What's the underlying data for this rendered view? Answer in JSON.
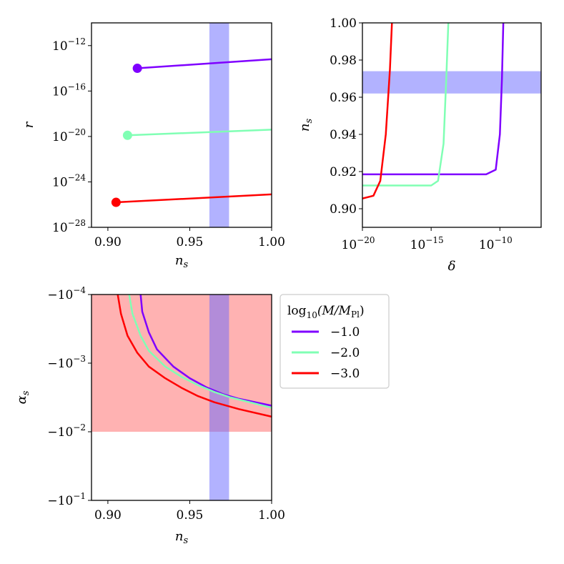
{
  "chart_data": [
    {
      "type": "line",
      "panel": "top-left",
      "xlabel": "n_s",
      "ylabel": "r",
      "xscale": "linear",
      "yscale": "log",
      "xlim": [
        0.89,
        1.0
      ],
      "ylim_exp": [
        -28,
        -10
      ],
      "xticks": [
        0.9,
        0.95,
        1.0
      ],
      "xtick_labels": [
        "0.90",
        "0.95",
        "1.00"
      ],
      "yticks_exp": [
        -28,
        -24,
        -20,
        -16,
        -12
      ],
      "band_x": [
        0.962,
        0.974
      ],
      "series": [
        {
          "name": "−1.0",
          "color": "#7f00ff",
          "x": [
            0.918,
            1.0
          ],
          "log10y": [
            -14.0,
            -13.2
          ]
        },
        {
          "name": "−2.0",
          "color": "#80ffb4",
          "x": [
            0.912,
            1.0
          ],
          "log10y": [
            -19.9,
            -19.4
          ]
        },
        {
          "name": "−3.0",
          "color": "#ff0000",
          "x": [
            0.905,
            1.0
          ],
          "log10y": [
            -25.8,
            -25.1
          ]
        }
      ]
    },
    {
      "type": "line",
      "panel": "top-right",
      "xlabel": "δ",
      "ylabel": "n_s",
      "xscale": "log",
      "yscale": "linear",
      "xlim_exp": [
        -20,
        -7
      ],
      "ylim": [
        0.89,
        1.0
      ],
      "xticks_exp": [
        -20,
        -15,
        -10
      ],
      "yticks": [
        0.9,
        0.92,
        0.94,
        0.96,
        0.98,
        1.0
      ],
      "ytick_labels": [
        "0.90",
        "0.92",
        "0.94",
        "0.96",
        "0.98",
        "1.00"
      ],
      "band_y": [
        0.962,
        0.974
      ],
      "series": [
        {
          "name": "−1.0",
          "color": "#7f00ff",
          "log10x": [
            -20,
            -11.0,
            -10.3,
            -10.0,
            -9.85,
            -9.75
          ],
          "y": [
            0.9185,
            0.9185,
            0.921,
            0.94,
            0.97,
            1.0
          ]
        },
        {
          "name": "−2.0",
          "color": "#80ffb4",
          "log10x": [
            -20,
            -15.0,
            -14.5,
            -14.1,
            -13.9,
            -13.75
          ],
          "y": [
            0.9125,
            0.9125,
            0.915,
            0.935,
            0.97,
            1.0
          ]
        },
        {
          "name": "−3.0",
          "color": "#ff0000",
          "log10x": [
            -20,
            -19.2,
            -18.7,
            -18.3,
            -18.0,
            -17.85
          ],
          "y": [
            0.9055,
            0.907,
            0.915,
            0.94,
            0.975,
            1.0
          ]
        }
      ]
    },
    {
      "type": "line",
      "panel": "bottom-left",
      "xlabel": "n_s",
      "ylabel": "α_s",
      "xscale": "linear",
      "yscale": "symlog-negative",
      "xlim": [
        0.89,
        1.0
      ],
      "ylim_exp": [
        -4,
        -1
      ],
      "xticks": [
        0.9,
        0.95,
        1.0
      ],
      "xtick_labels": [
        "0.90",
        "0.95",
        "1.00"
      ],
      "yticks_exp": [
        -4,
        -3,
        -2,
        -1
      ],
      "band_x": [
        0.962,
        0.974
      ],
      "region_alpha_exp": [
        -4,
        -2
      ],
      "series": [
        {
          "name": "−1.0",
          "color": "#7f00ff",
          "x": [
            0.92,
            0.921,
            0.925,
            0.93,
            0.94,
            0.95,
            0.96,
            0.97,
            0.98,
            1.0
          ],
          "log10neg": [
            -4.0,
            -3.75,
            -3.45,
            -3.2,
            -2.95,
            -2.78,
            -2.65,
            -2.55,
            -2.48,
            -2.38
          ]
        },
        {
          "name": "−2.0",
          "color": "#80ffb4",
          "x": [
            0.913,
            0.915,
            0.92,
            0.925,
            0.935,
            0.945,
            0.955,
            0.965,
            0.975,
            1.0
          ],
          "log10neg": [
            -4.0,
            -3.72,
            -3.4,
            -3.18,
            -2.95,
            -2.8,
            -2.68,
            -2.58,
            -2.5,
            -2.35
          ]
        },
        {
          "name": "−3.0",
          "color": "#ff0000",
          "x": [
            0.906,
            0.908,
            0.912,
            0.918,
            0.925,
            0.935,
            0.945,
            0.955,
            0.965,
            0.98,
            1.0
          ],
          "log10neg": [
            -4.0,
            -3.72,
            -3.4,
            -3.15,
            -2.95,
            -2.78,
            -2.64,
            -2.52,
            -2.43,
            -2.33,
            -2.22
          ]
        }
      ]
    }
  ],
  "legend": {
    "title_main": "log",
    "title_sub": "10",
    "title_rest": "(M/M",
    "title_pl": "Pl",
    "title_close": ")",
    "entries": [
      {
        "label": "−1.0",
        "color": "#7f00ff"
      },
      {
        "label": "−2.0",
        "color": "#80ffb4"
      },
      {
        "label": "−3.0",
        "color": "#ff0000"
      }
    ]
  },
  "colors": {
    "band": "#6666ff",
    "region": "#ff5555"
  }
}
